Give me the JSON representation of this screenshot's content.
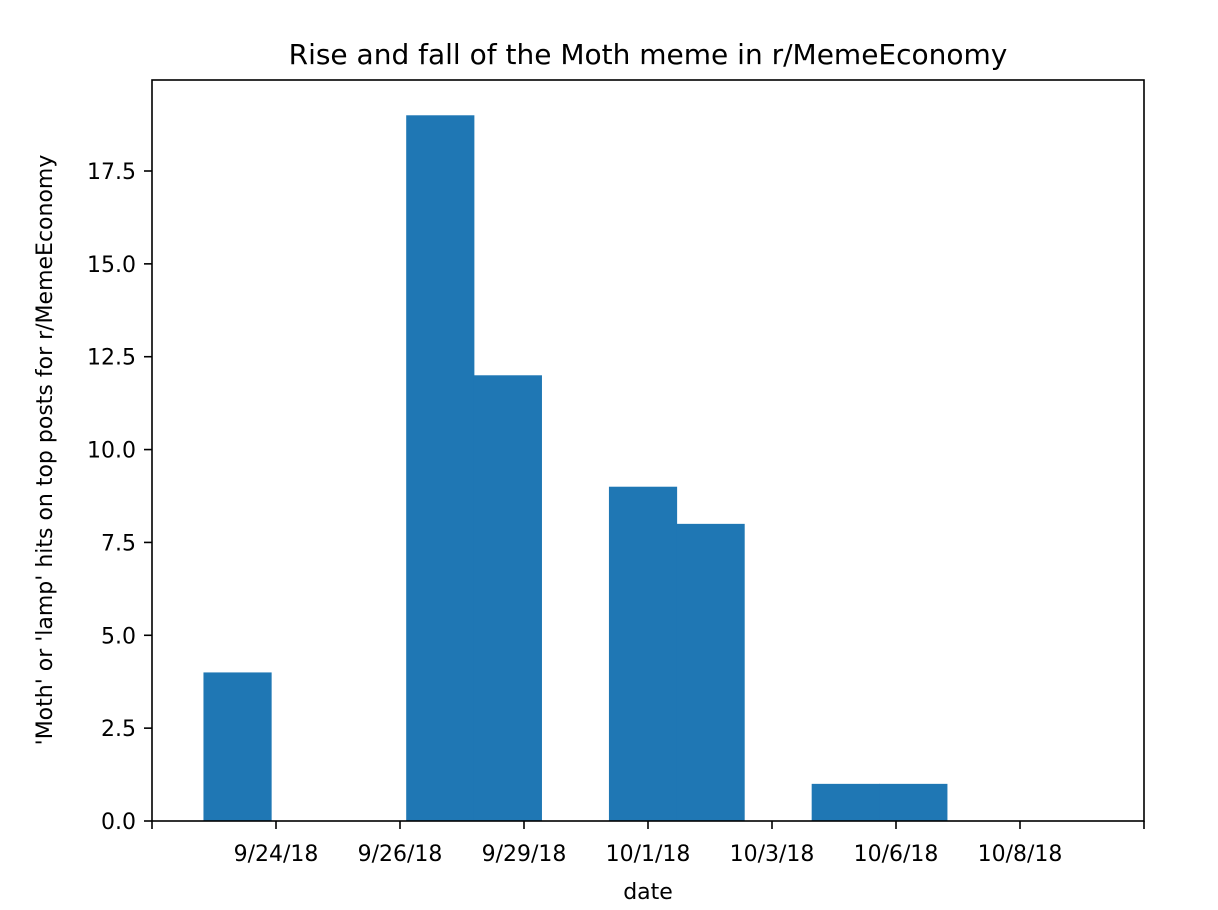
{
  "chart_data": {
    "type": "bar",
    "title": "Rise and fall of the Moth meme in r/MemeEconomy",
    "xlabel": "date",
    "ylabel": "'Moth' or 'lamp' hits on top posts for r/MemeEconomy",
    "xlim": [
      -2,
      14
    ],
    "ylim": [
      0,
      19.95
    ],
    "bar_color": "#1f77b4",
    "grid": false,
    "legend": "none",
    "x_ticks": [
      {
        "label": "",
        "x": -2
      },
      {
        "label": "9/24/18",
        "x": 0
      },
      {
        "label": "9/26/18",
        "x": 2
      },
      {
        "label": "9/29/18",
        "x": 4
      },
      {
        "label": "10/1/18",
        "x": 6
      },
      {
        "label": "10/3/18",
        "x": 8
      },
      {
        "label": "10/6/18",
        "x": 10
      },
      {
        "label": "10/8/18",
        "x": 12
      },
      {
        "label": "",
        "x": 14
      }
    ],
    "y_ticks": [
      {
        "label": "0.0",
        "value": 0
      },
      {
        "label": "2.5",
        "value": 2.5
      },
      {
        "label": "5.0",
        "value": 5
      },
      {
        "label": "7.5",
        "value": 7.5
      },
      {
        "label": "10.0",
        "value": 10
      },
      {
        "label": "12.5",
        "value": 12.5
      },
      {
        "label": "15.0",
        "value": 15
      },
      {
        "label": "17.5",
        "value": 17.5
      }
    ],
    "bars": [
      {
        "x0": -1.17,
        "x1": -0.08,
        "value": 4
      },
      {
        "x0": -0.08,
        "x1": 1.01,
        "value": 0
      },
      {
        "x0": 1.01,
        "x1": 2.1,
        "value": 0
      },
      {
        "x0": 2.1,
        "x1": 3.19,
        "value": 19
      },
      {
        "x0": 3.19,
        "x1": 4.28,
        "value": 12
      },
      {
        "x0": 4.28,
        "x1": 5.37,
        "value": 0
      },
      {
        "x0": 5.37,
        "x1": 6.46,
        "value": 9
      },
      {
        "x0": 6.46,
        "x1": 7.55,
        "value": 8
      },
      {
        "x0": 7.55,
        "x1": 8.64,
        "value": 0
      },
      {
        "x0": 8.64,
        "x1": 9.73,
        "value": 1
      },
      {
        "x0": 9.73,
        "x1": 10.82,
        "value": 1
      },
      {
        "x0": 10.82,
        "x1": 11.91,
        "value": 0
      },
      {
        "x0": 11.91,
        "x1": 13.0,
        "value": 0
      }
    ]
  }
}
